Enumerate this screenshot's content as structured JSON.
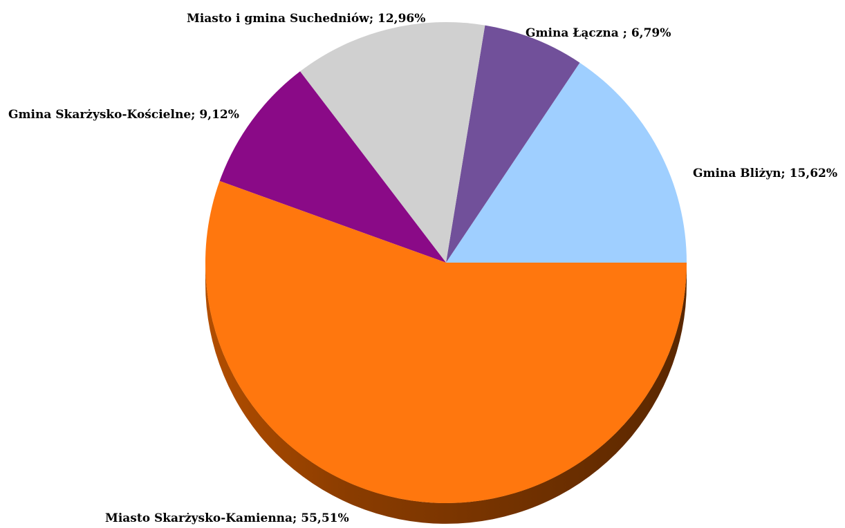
{
  "chart_data": {
    "type": "pie",
    "title": "",
    "start_angle_deg": 0,
    "direction": "counterclockwise",
    "slices": [
      {
        "label": "Gmina Bliżyn; 15,62%",
        "value": 15.62,
        "color": "#9fcfff"
      },
      {
        "label": "Gmina Łączna ; 6,79%",
        "value": 6.79,
        "color": "#71509a"
      },
      {
        "label": "Miasto i gmina Suchedniów; 12,96%",
        "value": 12.96,
        "color": "#d0d0d0"
      },
      {
        "label": "Gmina Skarżysko-Kościelne; 9,12%",
        "value": 9.12,
        "color": "#8a0a87"
      },
      {
        "label": "Miasto Skarżysko-Kamienna; 55,51%",
        "value": 55.51,
        "color": "#ff770e"
      }
    ]
  }
}
